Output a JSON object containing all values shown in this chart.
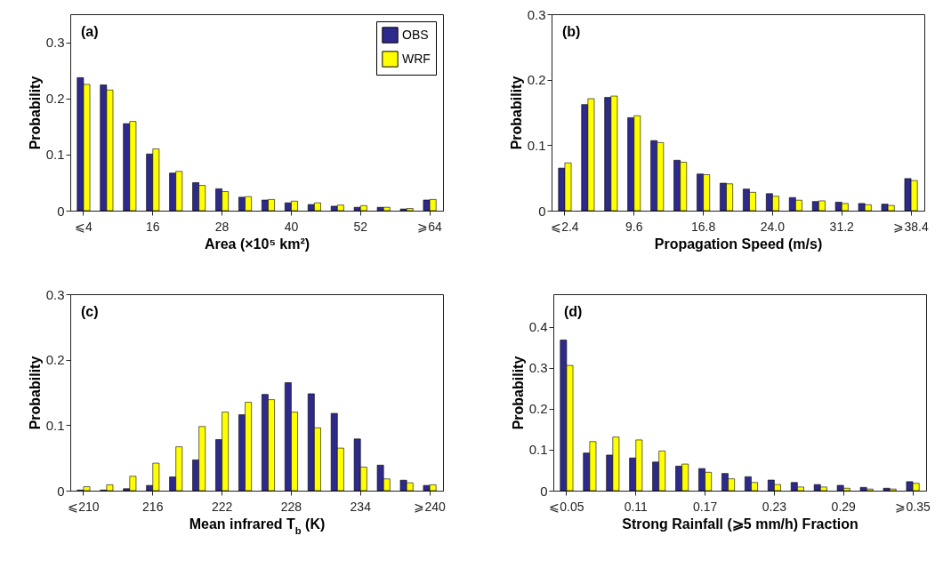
{
  "chart_data": [
    {
      "type": "bar",
      "annotations": [
        "(a)"
      ],
      "xlabel": "Area (×10⁵ km²)",
      "ylabel": "Probability",
      "categories": [
        "⩽4",
        null,
        null,
        "16",
        null,
        null,
        "28",
        null,
        null,
        "40",
        null,
        null,
        "52",
        null,
        null,
        "⩾64"
      ],
      "series": [
        {
          "name": "OBS",
          "color": "#2e2a8c",
          "values": [
            0.237,
            0.224,
            0.155,
            0.101,
            0.067,
            0.05,
            0.039,
            0.024,
            0.019,
            0.014,
            0.011,
            0.008,
            0.006,
            0.006,
            0.003,
            0.019
          ]
        },
        {
          "name": "WRF",
          "color": "#ffff00",
          "values": [
            0.225,
            0.215,
            0.159,
            0.11,
            0.07,
            0.045,
            0.034,
            0.025,
            0.02,
            0.017,
            0.014,
            0.01,
            0.009,
            0.006,
            0.004,
            0.02
          ]
        }
      ],
      "ylim": [
        0,
        0.35
      ],
      "yticks": [
        0,
        0.1,
        0.2,
        0.3
      ],
      "legend": "top right"
    },
    {
      "type": "bar",
      "annotations": [
        "(b)"
      ],
      "xlabel": "Propagation Speed (m/s)",
      "ylabel": "Probability",
      "categories": [
        "⩽2.4",
        null,
        null,
        "9.6",
        null,
        null,
        "16.8",
        null,
        null,
        "24.0",
        null,
        null,
        "31.2",
        null,
        null,
        "⩾38.4"
      ],
      "series": [
        {
          "color": "#2e2a8c",
          "values": [
            0.065,
            0.162,
            0.173,
            0.142,
            0.107,
            0.077,
            0.056,
            0.042,
            0.033,
            0.026,
            0.02,
            0.014,
            0.013,
            0.011,
            0.01,
            0.049
          ]
        },
        {
          "color": "#ffff00",
          "values": [
            0.073,
            0.171,
            0.175,
            0.145,
            0.104,
            0.074,
            0.055,
            0.041,
            0.028,
            0.022,
            0.016,
            0.015,
            0.011,
            0.009,
            0.008,
            0.046
          ]
        }
      ],
      "ylim": [
        0,
        0.3
      ],
      "yticks": [
        0,
        0.1,
        0.2,
        0.3
      ]
    },
    {
      "type": "bar",
      "annotations": [
        "(c)"
      ],
      "xlabel": "Mean infrared T$_{b}$ (K)",
      "ylabel": "Probability",
      "categories": [
        "⩽210",
        null,
        null,
        "216",
        null,
        null,
        "222",
        null,
        null,
        "228",
        null,
        null,
        "234",
        null,
        null,
        "⩾240"
      ],
      "series": [
        {
          "color": "#2e2a8c",
          "values": [
            0.001,
            0.001,
            0.003,
            0.008,
            0.021,
            0.047,
            0.078,
            0.116,
            0.147,
            0.165,
            0.148,
            0.118,
            0.079,
            0.039,
            0.016,
            0.008
          ]
        },
        {
          "color": "#ffff00",
          "values": [
            0.006,
            0.009,
            0.022,
            0.042,
            0.067,
            0.098,
            0.12,
            0.135,
            0.139,
            0.12,
            0.096,
            0.065,
            0.036,
            0.018,
            0.012,
            0.009
          ]
        }
      ],
      "ylim": [
        0,
        0.3
      ],
      "yticks": [
        0,
        0.1,
        0.2,
        0.3
      ]
    },
    {
      "type": "bar",
      "annotations": [
        "(d)"
      ],
      "xlabel": "Strong Rainfall (⩾5 mm/h) Fraction",
      "ylabel": "Probability",
      "categories": [
        "⩽0.05",
        null,
        null,
        "0.11",
        null,
        null,
        "0.17",
        null,
        null,
        "0.23",
        null,
        null,
        "0.29",
        null,
        null,
        "⩾0.35"
      ],
      "series": [
        {
          "color": "#2e2a8c",
          "values": [
            0.368,
            0.092,
            0.087,
            0.08,
            0.07,
            0.06,
            0.054,
            0.042,
            0.034,
            0.026,
            0.02,
            0.015,
            0.013,
            0.008,
            0.006,
            0.022
          ]
        },
        {
          "color": "#ffff00",
          "values": [
            0.306,
            0.12,
            0.131,
            0.124,
            0.097,
            0.065,
            0.045,
            0.029,
            0.02,
            0.015,
            0.009,
            0.009,
            0.006,
            0.004,
            0.004,
            0.018
          ]
        }
      ],
      "ylim": [
        0,
        0.48
      ],
      "yticks": [
        0,
        0.1,
        0.2,
        0.3,
        0.4
      ]
    }
  ]
}
